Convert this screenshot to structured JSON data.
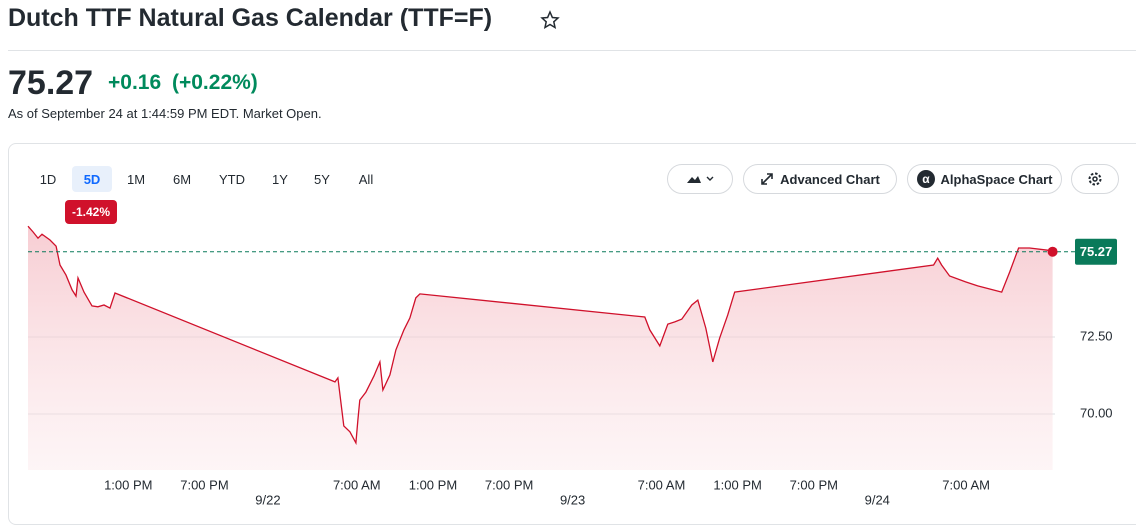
{
  "header": {
    "title": "Dutch TTF Natural Gas Calendar (TTF=F)"
  },
  "quote": {
    "price": "75.27",
    "change": "+0.16",
    "change_percent": "(+0.22%)",
    "as_of": "As of September 24 at 1:44:59 PM EDT. Market Open."
  },
  "ranges": {
    "buttons": [
      "1D",
      "5D",
      "1M",
      "6M",
      "YTD",
      "1Y",
      "5Y",
      "All"
    ],
    "selected_change": "-1.42%"
  },
  "toolbar": {
    "advanced": "Advanced Chart",
    "alphaspace": "AlphaSpace Chart"
  },
  "chart_data": {
    "type": "line",
    "color": "#d0112b",
    "current_color": "#0a7a5a",
    "x": [
      -18.9,
      -18.5,
      -18.11,
      -17.8,
      -17.17,
      -16.69,
      -16.38,
      -15.91,
      -15.43,
      -15.12,
      -14.96,
      -14.49,
      -13.86,
      -13.39,
      -12.91,
      -12.44,
      -12.05,
      5.28,
      5.51,
      5.98,
      6.46,
      6.93,
      7.09,
      7.24,
      7.72,
      8.35,
      8.82,
      9.06,
      9.61,
      10.08,
      10.71,
      11.18,
      11.65,
      11.97,
      29.69,
      30.08,
      30.87,
      31.5,
      32.05,
      32.6,
      33.39,
      33.86,
      34.49,
      35.04,
      35.59,
      36.22,
      36.77,
      52.44,
      52.76,
      53.07,
      53.7,
      54.96,
      55.91,
      57.8,
      58.43,
      59.13,
      60.0,
      61.42,
      61.81
    ],
    "values": [
      76.1,
      75.91,
      75.71,
      75.84,
      75.65,
      75.45,
      74.84,
      74.51,
      74.03,
      73.83,
      74.42,
      73.96,
      73.51,
      73.48,
      73.54,
      73.44,
      73.93,
      71.04,
      71.17,
      69.61,
      69.42,
      69.06,
      69.81,
      70.45,
      70.71,
      71.23,
      71.69,
      70.78,
      71.27,
      72.08,
      72.73,
      73.12,
      73.77,
      73.9,
      73.15,
      72.73,
      72.21,
      72.92,
      72.99,
      73.08,
      73.54,
      73.7,
      72.79,
      71.69,
      72.47,
      73.21,
      73.96,
      74.84,
      75.06,
      74.84,
      74.48,
      74.29,
      74.16,
      73.96,
      74.61,
      75.39,
      75.39,
      75.32,
      75.27
    ],
    "current_value": 75.27,
    "xlim": [
      -18.9,
      62
    ],
    "xticks": [
      {
        "value": -11,
        "label": "1:00 PM"
      },
      {
        "value": -5,
        "label": "7:00 PM"
      },
      {
        "value": 0,
        "label": "9/22"
      },
      {
        "value": 7,
        "label": "7:00 AM"
      },
      {
        "value": 13,
        "label": "1:00 PM"
      },
      {
        "value": 19,
        "label": "7:00 PM"
      },
      {
        "value": 24,
        "label": "9/23"
      },
      {
        "value": 31,
        "label": "7:00 AM"
      },
      {
        "value": 37,
        "label": "1:00 PM"
      },
      {
        "value": 43,
        "label": "7:00 PM"
      },
      {
        "value": 48,
        "label": "9/24"
      },
      {
        "value": 55,
        "label": "7:00 AM"
      }
    ],
    "ylim": [
      68.18,
      76.95
    ],
    "yticks": [
      {
        "value": 70,
        "label": "70.00"
      },
      {
        "value": 72.5,
        "label": "72.50"
      }
    ],
    "grid": true
  }
}
